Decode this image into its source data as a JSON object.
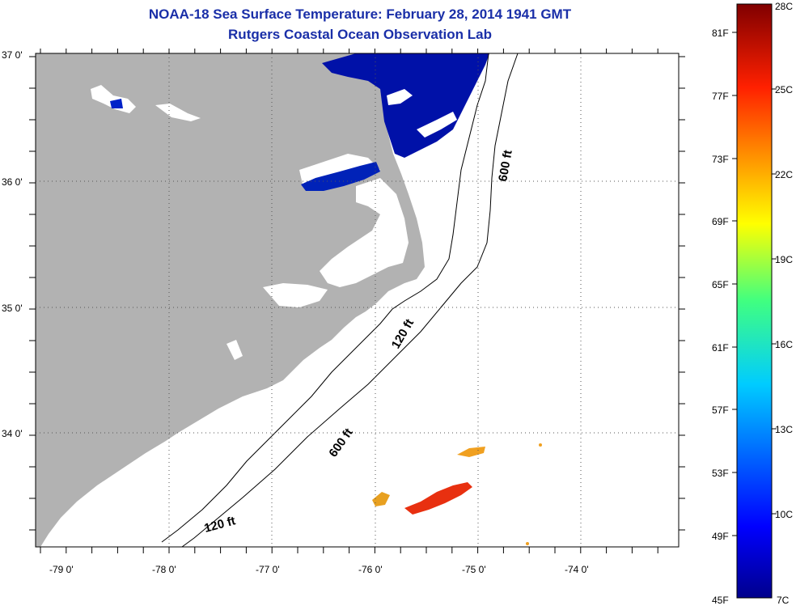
{
  "header": {
    "title": "NOAA-18 Sea Surface Temperature:  February 28, 2014 1941 GMT",
    "subtitle": "Rutgers Coastal Ocean Observation Lab"
  },
  "map": {
    "lon_ticks": [
      {
        "value": -79,
        "label": "-79 0'"
      },
      {
        "value": -78,
        "label": "-78 0'"
      },
      {
        "value": -77,
        "label": "-77 0'"
      },
      {
        "value": -76,
        "label": "-76 0'"
      },
      {
        "value": -75,
        "label": "-75 0'"
      },
      {
        "value": -74,
        "label": "-74 0'"
      }
    ],
    "lat_ticks": [
      {
        "value": 37,
        "label": "37 0'"
      },
      {
        "value": 36,
        "label": "36 0'"
      },
      {
        "value": 35,
        "label": "35 0'"
      },
      {
        "value": 34,
        "label": "34 0'"
      }
    ],
    "contour_labels": [
      "600 ft",
      "120 ft",
      "600 ft",
      "120 ft"
    ],
    "colors": {
      "land": "#b2b2b2",
      "water_cold": "#0011a8",
      "warm_patch": "#e83010",
      "warm_patch_edge": "#f0a020"
    }
  },
  "colorbar": {
    "min_label_f": "45F",
    "max_label_c": "28C",
    "bottom_label_c": "7C",
    "fahrenheit_labels": [
      "81F",
      "77F",
      "73F",
      "69F",
      "65F",
      "61F",
      "57F",
      "53F",
      "49F"
    ],
    "celsius_labels": [
      "25C",
      "22C",
      "19C",
      "16C",
      "13C",
      "10C"
    ]
  }
}
